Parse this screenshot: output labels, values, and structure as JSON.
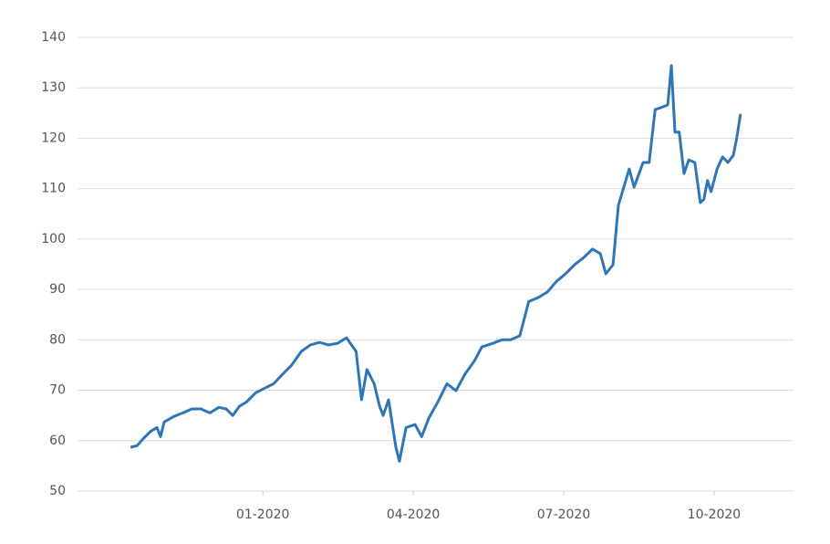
{
  "chart_data": {
    "type": "line",
    "x": [
      2019.78,
      2019.791,
      2019.802,
      2019.814,
      2019.824,
      2019.83,
      2019.836,
      2019.852,
      2019.867,
      2019.882,
      2019.897,
      2019.912,
      2019.927,
      2019.939,
      2019.95,
      2019.961,
      2019.973,
      2019.988,
      2020.003,
      2020.018,
      2020.033,
      2020.048,
      2020.064,
      2020.079,
      2020.094,
      2020.109,
      2020.124,
      2020.139,
      2020.155,
      2020.164,
      2020.173,
      2020.185,
      2020.194,
      2020.2,
      2020.209,
      2020.221,
      2020.227,
      2020.238,
      2020.253,
      2020.264,
      2020.276,
      2020.291,
      2020.306,
      2020.321,
      2020.336,
      2020.352,
      2020.364,
      2020.382,
      2020.397,
      2020.412,
      2020.427,
      2020.442,
      2020.458,
      2020.473,
      2020.488,
      2020.503,
      2020.518,
      2020.533,
      2020.548,
      2020.561,
      2020.57,
      2020.582,
      2020.591,
      2020.609,
      2020.617,
      2020.632,
      2020.642,
      2020.652,
      2020.662,
      2020.673,
      2020.679,
      2020.685,
      2020.692,
      2020.7,
      2020.708,
      2020.718,
      2020.727,
      2020.733,
      2020.739,
      2020.745,
      2020.755,
      2020.764,
      2020.773,
      2020.782,
      2020.788,
      2020.794
    ],
    "values": [
      58.7,
      59.0,
      60.5,
      61.9,
      62.6,
      60.8,
      63.7,
      64.8,
      65.5,
      66.3,
      66.3,
      65.5,
      66.6,
      66.3,
      65.0,
      66.8,
      67.7,
      69.5,
      70.4,
      71.3,
      73.2,
      75.0,
      77.7,
      79.0,
      79.5,
      79.0,
      79.3,
      80.4,
      77.7,
      68.1,
      74.1,
      71.3,
      66.8,
      65.0,
      68.1,
      58.7,
      55.9,
      62.6,
      63.2,
      60.8,
      64.5,
      67.7,
      71.3,
      69.9,
      73.2,
      75.9,
      78.6,
      79.3,
      80.0,
      80.0,
      80.8,
      87.6,
      88.4,
      89.5,
      91.6,
      93.1,
      94.9,
      96.3,
      98.0,
      97.1,
      93.1,
      94.9,
      106.7,
      113.9,
      110.3,
      115.2,
      115.2,
      125.7,
      126.1,
      126.6,
      134.4,
      121.2,
      121.2,
      113.0,
      115.7,
      115.2,
      107.2,
      107.9,
      111.6,
      109.4,
      113.9,
      116.3,
      115.2,
      116.6,
      120.3,
      124.8
    ],
    "color": "#2f76b6",
    "xlim": [
      2019.692,
      2020.882
    ],
    "xticks": [
      {
        "value": 2020.0,
        "label": "01-2020"
      },
      {
        "value": 2020.25,
        "label": "04-2020"
      },
      {
        "value": 2020.5,
        "label": "07-2020"
      },
      {
        "value": 2020.75,
        "label": "10-2020"
      }
    ],
    "ylim": [
      50,
      140
    ],
    "yticks": [
      50,
      60,
      70,
      80,
      90,
      100,
      110,
      120,
      130,
      140
    ],
    "grid": true
  }
}
